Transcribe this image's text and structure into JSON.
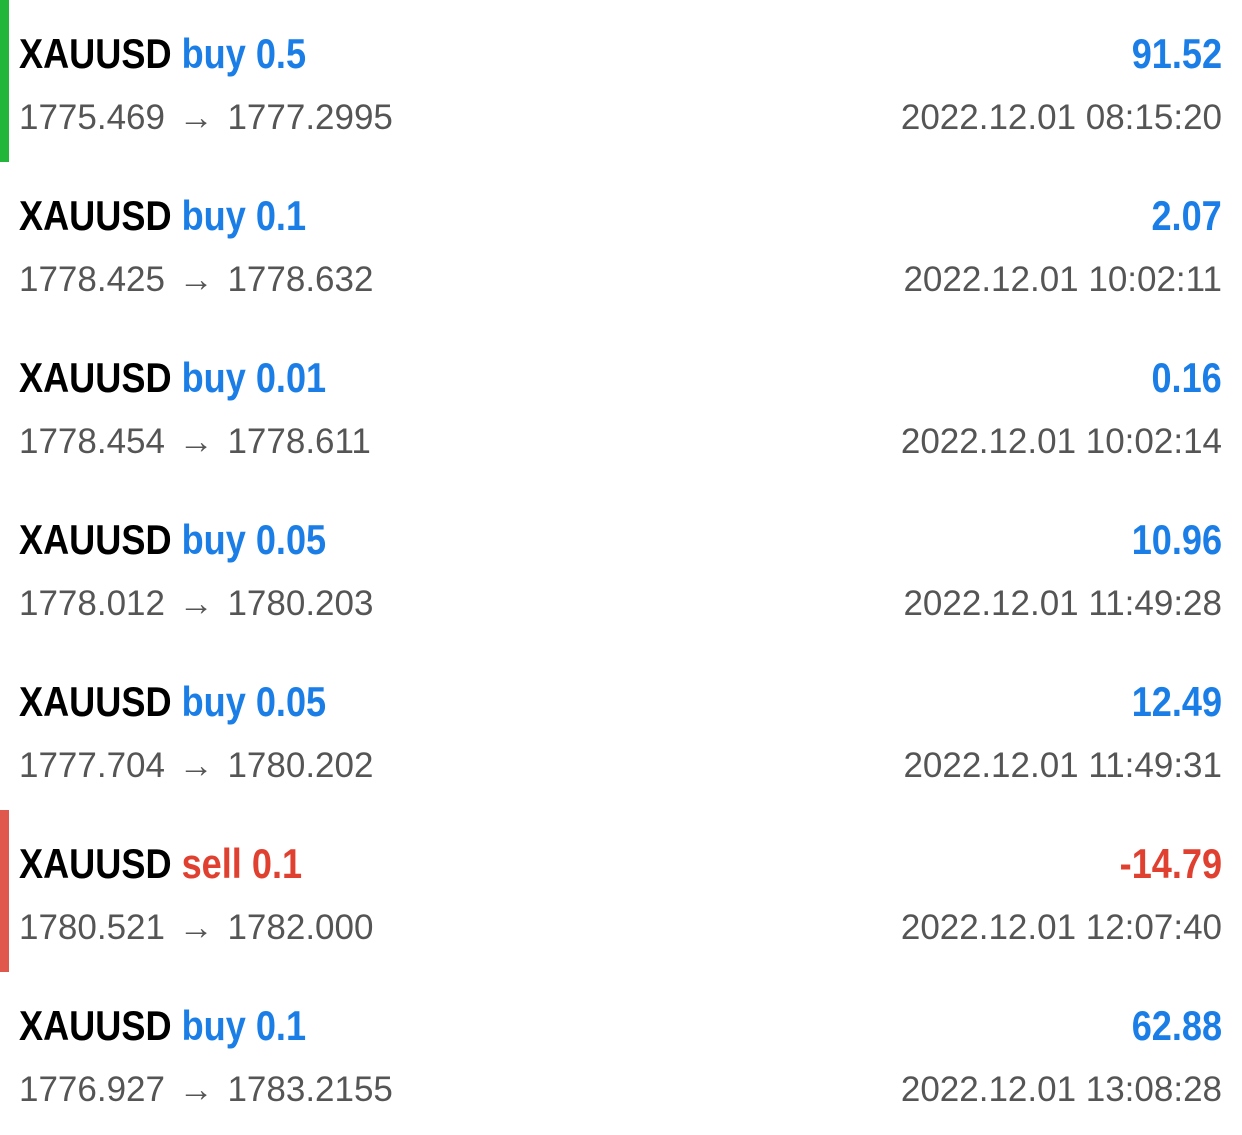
{
  "colors": {
    "buy": "#1a7ee6",
    "sell": "#e0402f",
    "symbol": "#000000",
    "secondary_text": "#555555",
    "accent_green": "#22b63a",
    "accent_red": "#e0574b"
  },
  "arrow_symbol": "→",
  "trades": [
    {
      "symbol": "XAUUSD",
      "type": "buy",
      "volume": "0.5",
      "open_price": "1775.469",
      "close_price": "1777.2995",
      "profit": "91.52",
      "time": "2022.12.01 08:15:20",
      "accent": "green"
    },
    {
      "symbol": "XAUUSD",
      "type": "buy",
      "volume": "0.1",
      "open_price": "1778.425",
      "close_price": "1778.632",
      "profit": "2.07",
      "time": "2022.12.01 10:02:11",
      "accent": "none"
    },
    {
      "symbol": "XAUUSD",
      "type": "buy",
      "volume": "0.01",
      "open_price": "1778.454",
      "close_price": "1778.611",
      "profit": "0.16",
      "time": "2022.12.01 10:02:14",
      "accent": "none"
    },
    {
      "symbol": "XAUUSD",
      "type": "buy",
      "volume": "0.05",
      "open_price": "1778.012",
      "close_price": "1780.203",
      "profit": "10.96",
      "time": "2022.12.01 11:49:28",
      "accent": "none"
    },
    {
      "symbol": "XAUUSD",
      "type": "buy",
      "volume": "0.05",
      "open_price": "1777.704",
      "close_price": "1780.202",
      "profit": "12.49",
      "time": "2022.12.01 11:49:31",
      "accent": "none"
    },
    {
      "symbol": "XAUUSD",
      "type": "sell",
      "volume": "0.1",
      "open_price": "1780.521",
      "close_price": "1782.000",
      "profit": "-14.79",
      "time": "2022.12.01 12:07:40",
      "accent": "red"
    },
    {
      "symbol": "XAUUSD",
      "type": "buy",
      "volume": "0.1",
      "open_price": "1776.927",
      "close_price": "1783.2155",
      "profit": "62.88",
      "time": "2022.12.01 13:08:28",
      "accent": "none"
    }
  ]
}
